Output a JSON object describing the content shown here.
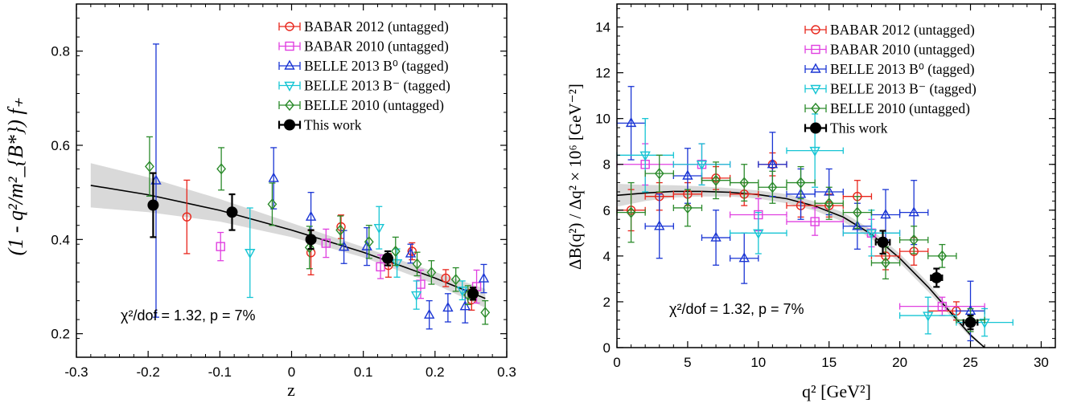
{
  "chart_data": [
    {
      "id": "left",
      "type": "scatter",
      "xlabel": "z",
      "ylabel": "(1 - q²/m²_{B*}) f₊",
      "xlim": [
        -0.3,
        0.3
      ],
      "ylim": [
        0.15,
        0.9
      ],
      "xticks": [
        -0.3,
        -0.2,
        -0.1,
        0,
        0.1,
        0.2,
        0.3
      ],
      "xtick_labels": [
        "-0.3",
        "-0.2",
        "-0.1",
        "0",
        "0.1",
        "0.2",
        "0.3"
      ],
      "yticks": [
        0.2,
        0.4,
        0.6,
        0.8
      ],
      "ytick_labels": [
        "0.2",
        "0.4",
        "0.6",
        "0.8"
      ],
      "annotation": "χ²/dof = 1.32,  p = 7%",
      "legend": {
        "position": "top-right"
      },
      "fit": {
        "x": [
          -0.28,
          -0.2,
          -0.1,
          0,
          0.1,
          0.2,
          0.27
        ],
        "y": [
          0.515,
          0.495,
          0.462,
          0.42,
          0.373,
          0.318,
          0.275
        ],
        "band_lower": [
          0.468,
          0.458,
          0.438,
          0.405,
          0.362,
          0.305,
          0.255
        ],
        "band_upper": [
          0.562,
          0.532,
          0.486,
          0.435,
          0.384,
          0.331,
          0.295
        ]
      },
      "series": [
        {
          "name": "BABAR 2012 (untagged)",
          "marker": "circle",
          "color": "#e8251b",
          "points": [
            {
              "x": -0.146,
              "y": 0.448,
              "err": 0.078
            },
            {
              "x": 0.027,
              "y": 0.372,
              "err": 0.047
            },
            {
              "x": 0.069,
              "y": 0.427,
              "err": 0.025
            },
            {
              "x": 0.135,
              "y": 0.345,
              "err": 0.025
            },
            {
              "x": 0.168,
              "y": 0.375,
              "err": 0.018
            },
            {
              "x": 0.215,
              "y": 0.318,
              "err": 0.018
            },
            {
              "x": 0.251,
              "y": 0.272,
              "err": 0.022
            }
          ]
        },
        {
          "name": "BABAR 2010 (untagged)",
          "marker": "square",
          "color": "#e040e0",
          "points": [
            {
              "x": -0.099,
              "y": 0.385,
              "err": 0.03
            },
            {
              "x": 0.048,
              "y": 0.392,
              "err": 0.03
            },
            {
              "x": 0.124,
              "y": 0.342,
              "err": 0.025
            },
            {
              "x": 0.18,
              "y": 0.305,
              "err": 0.03
            },
            {
              "x": 0.258,
              "y": 0.3,
              "err": 0.035
            }
          ]
        },
        {
          "name": "BELLE 2013 B⁰ (tagged)",
          "marker": "triangle-up",
          "color": "#1a35d4",
          "points": [
            {
              "x": -0.189,
              "y": 0.525,
              "err": 0.29
            },
            {
              "x": -0.025,
              "y": 0.53,
              "err": 0.065
            },
            {
              "x": 0.027,
              "y": 0.448,
              "err": 0.052
            },
            {
              "x": 0.073,
              "y": 0.384,
              "err": 0.035
            },
            {
              "x": 0.105,
              "y": 0.385,
              "err": 0.04
            },
            {
              "x": 0.166,
              "y": 0.37,
              "err": 0.02
            },
            {
              "x": 0.192,
              "y": 0.24,
              "err": 0.03
            },
            {
              "x": 0.218,
              "y": 0.255,
              "err": 0.03
            },
            {
              "x": 0.242,
              "y": 0.258,
              "err": 0.035
            },
            {
              "x": 0.268,
              "y": 0.317,
              "err": 0.03
            }
          ]
        },
        {
          "name": "BELLE 2013 B⁻ (tagged)",
          "marker": "triangle-down",
          "color": "#16c5d4",
          "points": [
            {
              "x": -0.058,
              "y": 0.372,
              "err": 0.095
            },
            {
              "x": 0.122,
              "y": 0.425,
              "err": 0.045
            },
            {
              "x": 0.147,
              "y": 0.35,
              "err": 0.03
            },
            {
              "x": 0.174,
              "y": 0.282,
              "err": 0.03
            },
            {
              "x": 0.238,
              "y": 0.292,
              "err": 0.02
            }
          ]
        },
        {
          "name": "BELLE 2010 (untagged)",
          "marker": "diamond",
          "color": "#2a8a2a",
          "points": [
            {
              "x": -0.198,
              "y": 0.555,
              "err": 0.063
            },
            {
              "x": -0.098,
              "y": 0.55,
              "err": 0.045
            },
            {
              "x": -0.027,
              "y": 0.475,
              "err": 0.045
            },
            {
              "x": 0.025,
              "y": 0.383,
              "err": 0.045
            },
            {
              "x": 0.068,
              "y": 0.42,
              "err": 0.03
            },
            {
              "x": 0.108,
              "y": 0.395,
              "err": 0.035
            },
            {
              "x": 0.145,
              "y": 0.375,
              "err": 0.03
            },
            {
              "x": 0.175,
              "y": 0.348,
              "err": 0.025
            },
            {
              "x": 0.195,
              "y": 0.33,
              "err": 0.025
            },
            {
              "x": 0.229,
              "y": 0.315,
              "err": 0.025
            },
            {
              "x": 0.246,
              "y": 0.282,
              "err": 0.02
            },
            {
              "x": 0.27,
              "y": 0.245,
              "err": 0.025
            }
          ]
        },
        {
          "name": "This work",
          "marker": "filled-circle",
          "color": "#000000",
          "points": [
            {
              "x": -0.193,
              "y": 0.473,
              "err": 0.068
            },
            {
              "x": -0.083,
              "y": 0.458,
              "err": 0.038
            },
            {
              "x": 0.027,
              "y": 0.4,
              "err": 0.02
            },
            {
              "x": 0.134,
              "y": 0.36,
              "err": 0.015
            },
            {
              "x": 0.253,
              "y": 0.285,
              "err": 0.013
            }
          ]
        }
      ]
    },
    {
      "id": "right",
      "type": "scatter",
      "xlabel": "q² [GeV²]",
      "ylabel": "ΔB(q²) / Δq² × 10⁶  [GeV⁻²]",
      "xlim": [
        0,
        31
      ],
      "ylim": [
        0,
        15
      ],
      "xticks": [
        0,
        5,
        10,
        15,
        20,
        25,
        30
      ],
      "xtick_labels": [
        "0",
        "5",
        "10",
        "15",
        "20",
        "25",
        "30"
      ],
      "yticks": [
        0,
        2,
        4,
        6,
        8,
        10,
        12,
        14
      ],
      "ytick_labels": [
        "0",
        "2",
        "4",
        "6",
        "8",
        "10",
        "12",
        "14"
      ],
      "annotation": "χ²/dof = 1.32,  p = 7%",
      "legend": {
        "position": "top-right"
      },
      "fit": {
        "x": [
          0,
          2,
          4,
          6,
          8,
          10,
          12,
          14,
          16,
          18,
          20,
          22,
          24,
          25,
          26
        ],
        "y": [
          6.65,
          6.75,
          6.82,
          6.82,
          6.78,
          6.68,
          6.5,
          6.18,
          5.7,
          4.95,
          3.9,
          2.65,
          1.25,
          0.55,
          0
        ],
        "band_lower": [
          6.15,
          6.4,
          6.55,
          6.6,
          6.6,
          6.5,
          6.3,
          5.98,
          5.5,
          4.75,
          3.7,
          2.45,
          1.1,
          0.45,
          0
        ],
        "band_upper": [
          7.15,
          7.1,
          7.09,
          7.04,
          6.96,
          6.86,
          6.7,
          6.38,
          5.9,
          5.15,
          4.1,
          2.85,
          1.4,
          0.65,
          0
        ]
      },
      "series": [
        {
          "name": "BABAR 2012 (untagged)",
          "marker": "circle",
          "color": "#e8251b",
          "points": [
            {
              "x": 1,
              "y": 6.0,
              "xerr": 1,
              "err": 0.9
            },
            {
              "x": 3,
              "y": 6.6,
              "xerr": 1,
              "err": 0.6
            },
            {
              "x": 5,
              "y": 6.7,
              "xerr": 1,
              "err": 0.5
            },
            {
              "x": 7,
              "y": 7.4,
              "xerr": 1,
              "err": 0.5
            },
            {
              "x": 9,
              "y": 6.7,
              "xerr": 1,
              "err": 0.5
            },
            {
              "x": 11,
              "y": 8.0,
              "xerr": 1,
              "err": 0.5
            },
            {
              "x": 13,
              "y": 6.2,
              "xerr": 1,
              "err": 0.5
            },
            {
              "x": 15,
              "y": 6.2,
              "xerr": 1,
              "err": 0.5
            },
            {
              "x": 17,
              "y": 6.6,
              "xerr": 1,
              "err": 0.7
            },
            {
              "x": 19,
              "y": 4.0,
              "xerr": 1,
              "err": 0.6
            },
            {
              "x": 21,
              "y": 4.2,
              "xerr": 1,
              "err": 0.6
            },
            {
              "x": 24,
              "y": 1.6,
              "xerr": 2,
              "err": 0.4
            }
          ]
        },
        {
          "name": "BABAR 2010 (untagged)",
          "marker": "square",
          "color": "#e040e0",
          "points": [
            {
              "x": 2,
              "y": 8.0,
              "xerr": 2,
              "err": 0.9
            },
            {
              "x": 6,
              "y": 8.0,
              "xerr": 2,
              "err": 0.9
            },
            {
              "x": 10,
              "y": 5.8,
              "xerr": 2,
              "err": 0.7
            },
            {
              "x": 14,
              "y": 5.5,
              "xerr": 2,
              "err": 0.6
            },
            {
              "x": 18,
              "y": 5.0,
              "xerr": 2,
              "err": 0.6
            },
            {
              "x": 23,
              "y": 1.8,
              "xerr": 3,
              "err": 0.4
            }
          ]
        },
        {
          "name": "BELLE 2013 B⁰ (tagged)",
          "marker": "triangle-up",
          "color": "#1a35d4",
          "points": [
            {
              "x": 1,
              "y": 9.8,
              "xerr": 1,
              "err": 1.6
            },
            {
              "x": 3,
              "y": 5.3,
              "xerr": 1,
              "err": 1.4
            },
            {
              "x": 5,
              "y": 7.5,
              "xerr": 1,
              "err": 1.2
            },
            {
              "x": 7,
              "y": 4.8,
              "xerr": 1,
              "err": 1.2
            },
            {
              "x": 9,
              "y": 3.9,
              "xerr": 1,
              "err": 1.1
            },
            {
              "x": 11,
              "y": 8.0,
              "xerr": 1,
              "err": 1.4
            },
            {
              "x": 13,
              "y": 6.7,
              "xerr": 1,
              "err": 1.1
            },
            {
              "x": 15,
              "y": 6.8,
              "xerr": 1,
              "err": 1.0
            },
            {
              "x": 17,
              "y": 5.3,
              "xerr": 1,
              "err": 1.0
            },
            {
              "x": 19,
              "y": 5.8,
              "xerr": 1,
              "err": 1.1
            },
            {
              "x": 21,
              "y": 5.9,
              "xerr": 1,
              "err": 1.4
            },
            {
              "x": 25,
              "y": 1.6,
              "xerr": 1,
              "err": 1.3
            }
          ]
        },
        {
          "name": "BELLE 2013 B⁻ (tagged)",
          "marker": "triangle-down",
          "color": "#16c5d4",
          "points": [
            {
              "x": 2,
              "y": 8.4,
              "xerr": 2,
              "err": 1.6
            },
            {
              "x": 6,
              "y": 8.0,
              "xerr": 2,
              "err": 0.9
            },
            {
              "x": 10,
              "y": 5.0,
              "xerr": 2,
              "err": 0.9
            },
            {
              "x": 14,
              "y": 8.6,
              "xerr": 2,
              "err": 1.6
            },
            {
              "x": 18,
              "y": 5.0,
              "xerr": 2,
              "err": 1.0
            },
            {
              "x": 22,
              "y": 1.4,
              "xerr": 2,
              "err": 0.8
            },
            {
              "x": 26,
              "y": 1.1,
              "xerr": 2,
              "err": 0.6
            }
          ]
        },
        {
          "name": "BELLE 2010 (untagged)",
          "marker": "diamond",
          "color": "#2a8a2a",
          "points": [
            {
              "x": 1,
              "y": 5.9,
              "xerr": 1,
              "err": 1.3
            },
            {
              "x": 3,
              "y": 7.6,
              "xerr": 1,
              "err": 0.8
            },
            {
              "x": 5,
              "y": 6.1,
              "xerr": 1,
              "err": 0.8
            },
            {
              "x": 7,
              "y": 7.3,
              "xerr": 1,
              "err": 0.8
            },
            {
              "x": 9,
              "y": 7.2,
              "xerr": 1,
              "err": 0.8
            },
            {
              "x": 11,
              "y": 7.0,
              "xerr": 1,
              "err": 0.7
            },
            {
              "x": 13,
              "y": 7.2,
              "xerr": 1,
              "err": 0.7
            },
            {
              "x": 15,
              "y": 6.3,
              "xerr": 1,
              "err": 0.7
            },
            {
              "x": 17,
              "y": 5.9,
              "xerr": 1,
              "err": 0.7
            },
            {
              "x": 19,
              "y": 3.7,
              "xerr": 1,
              "err": 0.7
            },
            {
              "x": 21,
              "y": 4.7,
              "xerr": 1,
              "err": 0.6
            },
            {
              "x": 23,
              "y": 4.0,
              "xerr": 1,
              "err": 0.5
            },
            {
              "x": 25,
              "y": 1.2,
              "xerr": 1,
              "err": 0.5
            }
          ]
        },
        {
          "name": "This work",
          "marker": "filled-circle",
          "color": "#000000",
          "points": [
            {
              "x": 18.8,
              "y": 4.6,
              "xerr": 0.5,
              "err": 0.5
            },
            {
              "x": 22.6,
              "y": 3.05,
              "xerr": 0.4,
              "err": 0.4
            },
            {
              "x": 25.0,
              "y": 1.1,
              "xerr": 0.5,
              "err": 0.3
            }
          ]
        }
      ]
    }
  ]
}
